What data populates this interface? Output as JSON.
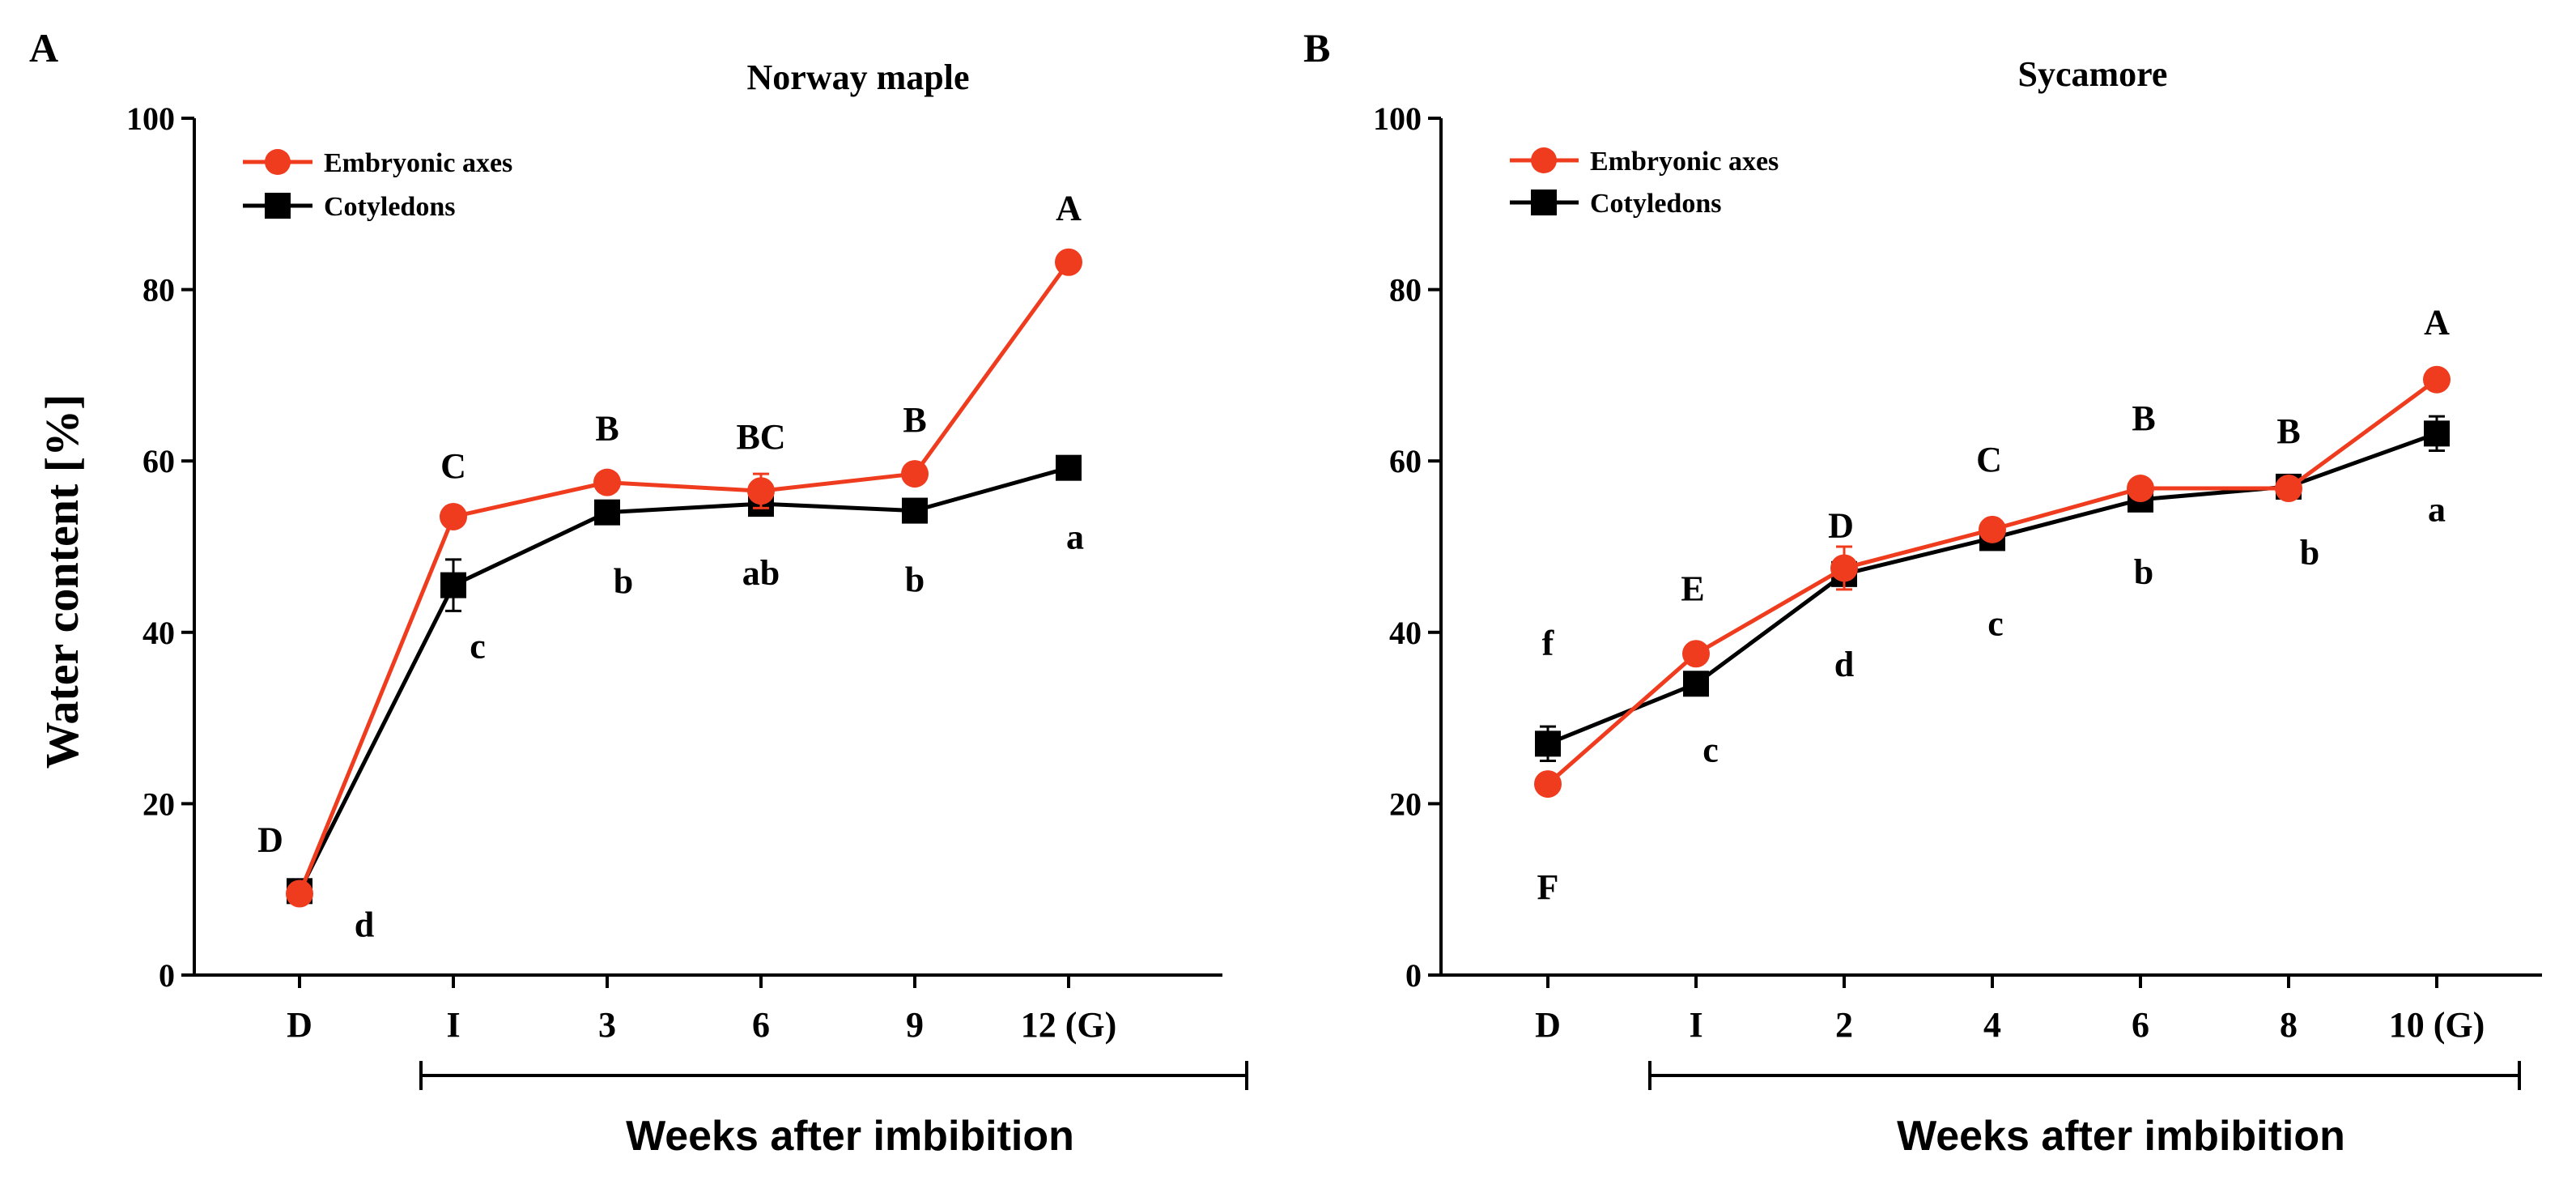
{
  "colors": {
    "embryonic_axes": "#f03c1e",
    "cotyledons": "#000000"
  },
  "chart_data": [
    {
      "panel": "A",
      "type": "line",
      "title": "Norway maple",
      "ylabel": "Water content [%]",
      "xlabel": "Weeks after imbibition",
      "ylim": [
        0,
        100
      ],
      "yticks": [
        0,
        20,
        40,
        60,
        80,
        100
      ],
      "categories": [
        "D",
        "I",
        "3",
        "6",
        "9",
        "12 (G)"
      ],
      "legend_position": "top-left",
      "series": [
        {
          "name": "Embryonic axes",
          "marker": "circle",
          "color": "#f03c1e",
          "values": [
            9.5,
            53.5,
            57.5,
            56.5,
            58.5,
            83.2
          ],
          "errors": [
            0.5,
            0.8,
            0.8,
            2.0,
            0.8,
            0.8
          ],
          "labels": [
            "D",
            "C",
            "B",
            "BC",
            "B",
            "A"
          ]
        },
        {
          "name": "Cotyledons",
          "marker": "square",
          "color": "#000000",
          "values": [
            9.8,
            45.5,
            54.0,
            55.0,
            54.2,
            59.2
          ],
          "errors": [
            0.5,
            3.0,
            0.8,
            1.0,
            0.8,
            0.8
          ],
          "labels": [
            "d",
            "c",
            "b",
            "ab",
            "b",
            "a"
          ]
        }
      ]
    },
    {
      "panel": "B",
      "type": "line",
      "title": "Sycamore",
      "ylabel": "",
      "xlabel": "Weeks after imbibition",
      "ylim": [
        0,
        100
      ],
      "yticks": [
        0,
        20,
        40,
        60,
        80,
        100
      ],
      "categories": [
        "D",
        "I",
        "2",
        "4",
        "6",
        "8",
        "10 (G)"
      ],
      "legend_position": "top-left",
      "series": [
        {
          "name": "Embryonic axes",
          "marker": "circle",
          "color": "#f03c1e",
          "values": [
            22.3,
            37.5,
            47.5,
            52.0,
            56.8,
            56.8,
            69.5
          ],
          "errors": [
            0.8,
            0.8,
            2.5,
            0.8,
            0.8,
            0.8,
            1.0
          ],
          "labels": [
            "F",
            "E",
            "D",
            "C",
            "B",
            "B",
            "A"
          ]
        },
        {
          "name": "Cotyledons",
          "marker": "square",
          "color": "#000000",
          "values": [
            27.0,
            34.0,
            46.8,
            51.0,
            55.5,
            57.0,
            63.2
          ],
          "errors": [
            2.0,
            1.0,
            1.0,
            0.8,
            0.8,
            0.8,
            2.0
          ],
          "labels": [
            "f",
            "c",
            "d",
            "c",
            "b",
            "b",
            "a"
          ]
        }
      ]
    }
  ]
}
